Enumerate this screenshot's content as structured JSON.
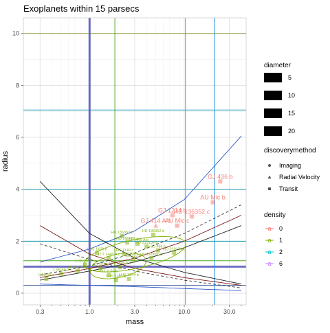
{
  "chart_data": {
    "type": "scatter",
    "title": "Exoplanets within 15 parsecs",
    "xlabel": "mass",
    "ylabel": "radius",
    "x_scale": "log10",
    "xlim": [
      0.2,
      45
    ],
    "ylim": [
      -0.45,
      10.6
    ],
    "x_ticks": [
      0.3,
      1.0,
      3.0,
      10.0,
      30.0
    ],
    "x_tick_labels": [
      "0.3",
      "1.0",
      "3.0",
      "10.0",
      "30.0"
    ],
    "y_ticks": [
      0,
      2,
      4,
      6,
      8,
      10
    ],
    "y_tick_labels": [
      "0",
      "2",
      "4",
      "6",
      "8",
      "10"
    ],
    "grid": true,
    "legends": {
      "diameter": {
        "title": "diameter",
        "labels": [
          "5",
          "10",
          "15",
          "20"
        ]
      },
      "discoverymethod": {
        "title": "discoverymethod",
        "labels": [
          "Imaging",
          "Radial Velocity",
          "Transit"
        ]
      },
      "density": {
        "title": "density",
        "labels": [
          "0",
          "1",
          "2",
          "6"
        ],
        "colors": [
          "#f8766d",
          "#7cae00",
          "#00bfc4",
          "#c77cff"
        ]
      }
    },
    "points": [
      {
        "x": 24.0,
        "y": 4.3,
        "label": "GJ 436 b",
        "density": "0",
        "method": "Transit"
      },
      {
        "x": 20.0,
        "y": 3.5,
        "label": "AU Mic b",
        "density": "0",
        "method": "Transit"
      },
      {
        "x": 12.0,
        "y": 2.95,
        "label": "HD 136352 c",
        "density": "0",
        "method": "Transit"
      },
      {
        "x": 7.5,
        "y": 3.0,
        "label": "GJ 1214 b",
        "density": "0",
        "method": "Transit"
      },
      {
        "x": 8.4,
        "y": 2.6,
        "label": "AU Mic c",
        "density": "0",
        "method": "Transit"
      },
      {
        "x": 5.0,
        "y": 2.6,
        "label": "GJ 414 A b",
        "density": "0",
        "method": "Radial Velocity"
      },
      {
        "x": 4.7,
        "y": 2.25,
        "label": "HD 136352 d",
        "density": "1",
        "method": "Transit"
      },
      {
        "x": 2.2,
        "y": 2.2,
        "label": "HD 136352 b",
        "density": "1",
        "method": "Transit"
      },
      {
        "x": 2.5,
        "y": 1.95,
        "label": "HD 260655 c",
        "density": "1",
        "method": "Transit"
      },
      {
        "x": 3.2,
        "y": 1.9,
        "label": "LTT 1445 A b",
        "density": "1",
        "method": "Transit"
      },
      {
        "x": 4.0,
        "y": 1.8,
        "label": "HD 219134 b",
        "density": "1",
        "method": "Transit"
      },
      {
        "x": 5.3,
        "y": 1.65,
        "label": "GJ 486 b",
        "density": "1",
        "method": "Transit"
      },
      {
        "x": 7.8,
        "y": 1.55,
        "label": "HD 219134 c",
        "density": "1",
        "method": "Transit"
      },
      {
        "x": 1.2,
        "y": 1.55,
        "label": "LHS 1478 b",
        "density": "1",
        "method": "Transit"
      },
      {
        "x": 1.6,
        "y": 1.35,
        "label": "LTT 1445 A c",
        "density": "1",
        "method": "Transit"
      },
      {
        "x": 2.3,
        "y": 1.5,
        "label": "LHS 1140 c",
        "density": "1",
        "method": "Transit"
      },
      {
        "x": 2.9,
        "y": 1.3,
        "label": "GJ 357 b",
        "density": "1",
        "method": "Transit"
      },
      {
        "x": 4.5,
        "y": 1.35,
        "label": "HD 260655 b",
        "density": "1",
        "method": "Transit"
      },
      {
        "x": 0.9,
        "y": 1.1,
        "label": "LHS 1678 c",
        "density": "1",
        "method": "Transit"
      },
      {
        "x": 1.3,
        "y": 0.95,
        "label": "GJ 367 b",
        "density": "1",
        "method": "Transit"
      },
      {
        "x": 2.1,
        "y": 1.0,
        "label": "LTT 1445 A d",
        "density": "1",
        "method": "Transit"
      },
      {
        "x": 0.5,
        "y": 0.75,
        "label": "L 98-59 b",
        "density": "1",
        "method": "Transit"
      },
      {
        "x": 0.75,
        "y": 0.85,
        "label": "LHS 1678 b",
        "density": "1",
        "method": "Transit"
      },
      {
        "x": 1.6,
        "y": 0.7,
        "label": "GJ 1132 b",
        "density": "1",
        "method": "Transit"
      },
      {
        "x": 2.6,
        "y": 0.55,
        "label": "LHS 3844 b",
        "density": "1",
        "method": "Transit"
      },
      {
        "x": 0.35,
        "y": 0.55,
        "label": "L 98-59 c",
        "density": "1",
        "method": "Transit"
      },
      {
        "x": 1.9,
        "y": 0.5,
        "label": "LHS 1140 b",
        "density": "1",
        "method": "Transit"
      }
    ],
    "hlines": [
      {
        "y": 10,
        "color": "#9aa04c",
        "width": 1
      },
      {
        "y": 7.05,
        "color": "#2aa0bf",
        "width": 1
      },
      {
        "y": 4.0,
        "color": "#1d9bb5",
        "width": 1
      },
      {
        "y": 2.0,
        "color": "#1d9bb5",
        "width": 1
      },
      {
        "y": 1.25,
        "color": "#4caa20",
        "width": 1
      },
      {
        "y": 1.02,
        "color": "#7070c8",
        "width": 3
      },
      {
        "y": 0.3,
        "color": "#4060a0",
        "width": 1
      }
    ],
    "vlines": [
      {
        "x": 1.0,
        "color": "#6a6ac0",
        "width": 3
      },
      {
        "x": 1.85,
        "color": "#4caa20",
        "width": 1
      },
      {
        "x": 10.3,
        "color": "#1fb8c0",
        "width": 1
      },
      {
        "x": 21.0,
        "color": "#1d8fd8",
        "width": 1
      }
    ],
    "curves": [
      {
        "name": "blue-upper",
        "color": "#2a56c6",
        "dash": "",
        "points": [
          [
            0.3,
            1.2
          ],
          [
            1,
            1.7
          ],
          [
            3,
            2.4
          ],
          [
            10,
            3.6
          ],
          [
            40,
            6.05
          ]
        ]
      },
      {
        "name": "black-decay",
        "color": "#222222",
        "dash": "",
        "points": [
          [
            0.3,
            4.3
          ],
          [
            1,
            2.3
          ],
          [
            3,
            1.35
          ],
          [
            10,
            0.8
          ],
          [
            40,
            0.35
          ]
        ]
      },
      {
        "name": "darkred-decay",
        "color": "#7a1a1a",
        "dash": "",
        "points": [
          [
            0.3,
            2.6
          ],
          [
            1,
            1.5
          ],
          [
            3,
            0.95
          ],
          [
            10,
            0.6
          ],
          [
            40,
            0.3
          ]
        ]
      },
      {
        "name": "darkred-rise",
        "color": "#7a1a1a",
        "dash": "",
        "points": [
          [
            0.3,
            0.6
          ],
          [
            1,
            0.95
          ],
          [
            3,
            1.35
          ],
          [
            10,
            2.0
          ],
          [
            40,
            3.0
          ]
        ]
      },
      {
        "name": "black-rise",
        "color": "#222222",
        "dash": "",
        "points": [
          [
            0.3,
            0.5
          ],
          [
            1,
            0.85
          ],
          [
            3,
            1.2
          ],
          [
            10,
            1.75
          ],
          [
            40,
            2.6
          ]
        ]
      },
      {
        "name": "dashed-rise",
        "color": "#333333",
        "dash": "4,3",
        "points": [
          [
            0.3,
            0.7
          ],
          [
            1,
            1.05
          ],
          [
            3,
            1.55
          ],
          [
            10,
            2.3
          ],
          [
            40,
            3.4
          ]
        ]
      },
      {
        "name": "dashed-decay",
        "color": "#333333",
        "dash": "4,3",
        "points": [
          [
            0.3,
            1.9
          ],
          [
            1,
            1.3
          ],
          [
            3,
            0.85
          ],
          [
            10,
            0.5
          ],
          [
            40,
            0.2
          ]
        ]
      },
      {
        "name": "blue-flat",
        "color": "#2a56c6",
        "dash": "",
        "points": [
          [
            0.3,
            0.35
          ],
          [
            1,
            0.3
          ],
          [
            3,
            0.25
          ],
          [
            10,
            0.18
          ],
          [
            40,
            0.1
          ]
        ]
      }
    ],
    "ellipses": [
      {
        "cx": 3.0,
        "cy": 1.5,
        "rx_decades": 0.55,
        "ry": 0.55,
        "color": "#7cae00"
      },
      {
        "cx": 2.0,
        "cy": 1.05,
        "rx_decades": 0.3,
        "ry": 0.45,
        "color": "#7cae00"
      }
    ]
  }
}
